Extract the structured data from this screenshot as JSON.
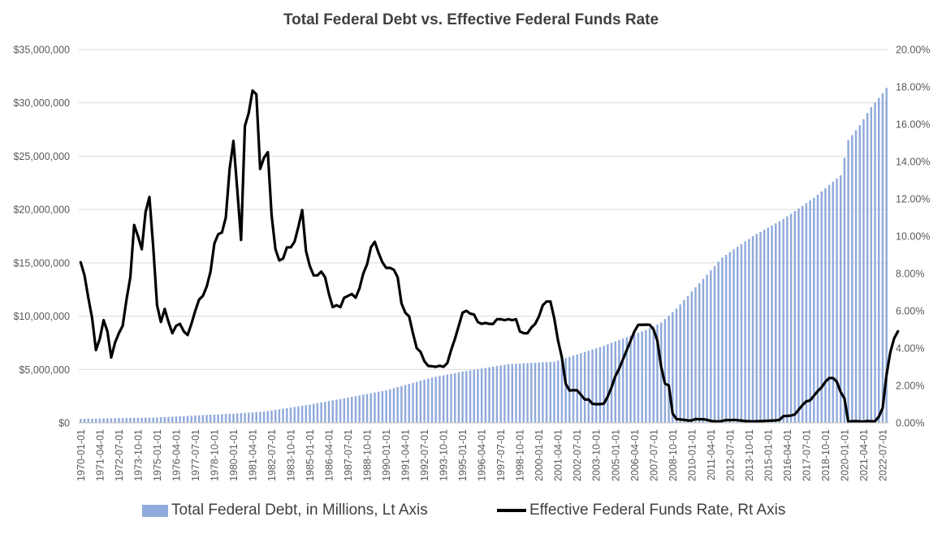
{
  "colors": {
    "bars": "#8faadc",
    "line": "#000000",
    "grid": "#d9d9d9",
    "text": "#595959"
  },
  "chart_data": {
    "type": "bar",
    "combo": "bar + line, dual axis",
    "title": "Total Federal Debt vs. Effective Federal Funds Rate",
    "grid": true,
    "legend_position": "bottom",
    "left_axis": {
      "range": [
        0,
        35000000
      ],
      "tick_labels": [
        "$0",
        "$5,000,000",
        "$10,000,000",
        "$15,000,000",
        "$20,000,000",
        "$25,000,000",
        "$30,000,000",
        "$35,000,000"
      ]
    },
    "right_axis": {
      "range": [
        0,
        20
      ],
      "tick_labels": [
        "0.00%",
        "2.00%",
        "4.00%",
        "6.00%",
        "8.00%",
        "10.00%",
        "12.00%",
        "14.00%",
        "16.00%",
        "18.00%",
        "20.00%"
      ]
    },
    "x_tick_labels": [
      "1970-01-01",
      "1971-04-01",
      "1972-07-01",
      "1973-10-01",
      "1975-01-01",
      "1976-04-01",
      "1977-07-01",
      "1978-10-01",
      "1980-01-01",
      "1981-04-01",
      "1982-07-01",
      "1983-10-01",
      "1985-01-01",
      "1986-04-01",
      "1987-07-01",
      "1988-10-01",
      "1990-01-01",
      "1991-04-01",
      "1992-07-01",
      "1993-10-01",
      "1995-01-01",
      "1996-04-01",
      "1997-07-01",
      "1998-10-01",
      "2000-01-01",
      "2001-04-01",
      "2002-07-01",
      "2003-10-01",
      "2005-01-01",
      "2006-04-01",
      "2007-07-01",
      "2008-10-01",
      "2010-01-01",
      "2011-04-01",
      "2012-07-01",
      "2013-10-01",
      "2015-01-01",
      "2016-04-01",
      "2017-07-01",
      "2018-10-01",
      "2020-01-01",
      "2021-04-01",
      "2022-07-01"
    ],
    "x_start": "1970-01-01",
    "x_end": "2023-01-01",
    "frequency": "quarterly",
    "series": [
      {
        "name": "Total Federal Debt, in Millions, Lt Axis",
        "type": "bar",
        "axis": "left",
        "anchors": [
          [
            "1970-01-01",
            371000
          ],
          [
            "1975-01-01",
            509000
          ],
          [
            "1980-01-01",
            863000
          ],
          [
            "1982-01-01",
            1050000
          ],
          [
            "1985-01-01",
            1710000
          ],
          [
            "1988-01-01",
            2500000
          ],
          [
            "1990-01-01",
            3050000
          ],
          [
            "1993-01-01",
            4240000
          ],
          [
            "1995-01-01",
            4800000
          ],
          [
            "1998-01-01",
            5500000
          ],
          [
            "2001-01-01",
            5730000
          ],
          [
            "2004-01-01",
            7100000
          ],
          [
            "2007-01-01",
            8700000
          ],
          [
            "2008-01-01",
            9400000
          ],
          [
            "2009-01-01",
            10700000
          ],
          [
            "2010-01-01",
            12300000
          ],
          [
            "2012-01-01",
            15500000
          ],
          [
            "2014-01-01",
            17500000
          ],
          [
            "2016-01-01",
            19100000
          ],
          [
            "2018-01-01",
            21100000
          ],
          [
            "2019-10-01",
            23200000
          ],
          [
            "2020-04-01",
            26500000
          ],
          [
            "2021-01-01",
            27900000
          ],
          [
            "2021-10-01",
            29600000
          ],
          [
            "2022-07-01",
            30900000
          ],
          [
            "2022-10-01",
            31400000
          ]
        ]
      },
      {
        "name": "Effective Federal Funds Rate, Rt Axis",
        "type": "line",
        "axis": "right",
        "points": [
          [
            "1970-01-01",
            8.6
          ],
          [
            "1970-04-01",
            7.9
          ],
          [
            "1970-07-01",
            6.7
          ],
          [
            "1970-10-01",
            5.6
          ],
          [
            "1971-01-01",
            3.9
          ],
          [
            "1971-04-01",
            4.5
          ],
          [
            "1971-07-01",
            5.5
          ],
          [
            "1971-10-01",
            4.9
          ],
          [
            "1972-01-01",
            3.5
          ],
          [
            "1972-04-01",
            4.3
          ],
          [
            "1972-07-01",
            4.8
          ],
          [
            "1972-10-01",
            5.2
          ],
          [
            "1973-01-01",
            6.6
          ],
          [
            "1973-04-01",
            7.8
          ],
          [
            "1973-07-01",
            10.6
          ],
          [
            "1973-10-01",
            10.0
          ],
          [
            "1974-01-01",
            9.3
          ],
          [
            "1974-04-01",
            11.3
          ],
          [
            "1974-07-01",
            12.1
          ],
          [
            "1974-10-01",
            9.4
          ],
          [
            "1975-01-01",
            6.3
          ],
          [
            "1975-04-01",
            5.4
          ],
          [
            "1975-07-01",
            6.1
          ],
          [
            "1975-10-01",
            5.4
          ],
          [
            "1976-01-01",
            4.8
          ],
          [
            "1976-04-01",
            5.2
          ],
          [
            "1976-07-01",
            5.3
          ],
          [
            "1976-10-01",
            4.9
          ],
          [
            "1977-01-01",
            4.7
          ],
          [
            "1977-04-01",
            5.3
          ],
          [
            "1977-07-01",
            6.0
          ],
          [
            "1977-10-01",
            6.6
          ],
          [
            "1978-01-01",
            6.8
          ],
          [
            "1978-04-01",
            7.3
          ],
          [
            "1978-07-01",
            8.1
          ],
          [
            "1978-10-01",
            9.6
          ],
          [
            "1979-01-01",
            10.1
          ],
          [
            "1979-04-01",
            10.2
          ],
          [
            "1979-07-01",
            11.0
          ],
          [
            "1979-10-01",
            13.6
          ],
          [
            "1980-01-01",
            15.1
          ],
          [
            "1980-04-01",
            12.5
          ],
          [
            "1980-07-01",
            9.8
          ],
          [
            "1980-10-01",
            15.9
          ],
          [
            "1981-01-01",
            16.6
          ],
          [
            "1981-04-01",
            17.8
          ],
          [
            "1981-07-01",
            17.6
          ],
          [
            "1981-10-01",
            13.6
          ],
          [
            "1982-01-01",
            14.2
          ],
          [
            "1982-04-01",
            14.5
          ],
          [
            "1982-07-01",
            11.1
          ],
          [
            "1982-10-01",
            9.3
          ],
          [
            "1983-01-01",
            8.7
          ],
          [
            "1983-04-01",
            8.8
          ],
          [
            "1983-07-01",
            9.4
          ],
          [
            "1983-10-01",
            9.4
          ],
          [
            "1984-01-01",
            9.7
          ],
          [
            "1984-04-01",
            10.5
          ],
          [
            "1984-07-01",
            11.4
          ],
          [
            "1984-10-01",
            9.2
          ],
          [
            "1985-01-01",
            8.4
          ],
          [
            "1985-04-01",
            7.9
          ],
          [
            "1985-07-01",
            7.9
          ],
          [
            "1985-10-01",
            8.1
          ],
          [
            "1986-01-01",
            7.8
          ],
          [
            "1986-04-01",
            6.9
          ],
          [
            "1986-07-01",
            6.2
          ],
          [
            "1986-10-01",
            6.3
          ],
          [
            "1987-01-01",
            6.2
          ],
          [
            "1987-04-01",
            6.7
          ],
          [
            "1987-07-01",
            6.8
          ],
          [
            "1987-10-01",
            6.9
          ],
          [
            "1988-01-01",
            6.7
          ],
          [
            "1988-04-01",
            7.2
          ],
          [
            "1988-07-01",
            8.0
          ],
          [
            "1988-10-01",
            8.5
          ],
          [
            "1989-01-01",
            9.4
          ],
          [
            "1989-04-01",
            9.7
          ],
          [
            "1989-07-01",
            9.1
          ],
          [
            "1989-10-01",
            8.6
          ],
          [
            "1990-01-01",
            8.3
          ],
          [
            "1990-04-01",
            8.3
          ],
          [
            "1990-07-01",
            8.2
          ],
          [
            "1990-10-01",
            7.8
          ],
          [
            "1991-01-01",
            6.4
          ],
          [
            "1991-04-01",
            5.9
          ],
          [
            "1991-07-01",
            5.7
          ],
          [
            "1991-10-01",
            4.8
          ],
          [
            "1992-01-01",
            4.0
          ],
          [
            "1992-04-01",
            3.8
          ],
          [
            "1992-07-01",
            3.3
          ],
          [
            "1992-10-01",
            3.05
          ],
          [
            "1993-01-01",
            3.03
          ],
          [
            "1993-04-01",
            3.0
          ],
          [
            "1993-07-01",
            3.06
          ],
          [
            "1993-10-01",
            3.0
          ],
          [
            "1994-01-01",
            3.2
          ],
          [
            "1994-04-01",
            3.9
          ],
          [
            "1994-07-01",
            4.5
          ],
          [
            "1994-10-01",
            5.2
          ],
          [
            "1995-01-01",
            5.9
          ],
          [
            "1995-04-01",
            6.0
          ],
          [
            "1995-07-01",
            5.85
          ],
          [
            "1995-10-01",
            5.8
          ],
          [
            "1996-01-01",
            5.4
          ],
          [
            "1996-04-01",
            5.3
          ],
          [
            "1996-07-01",
            5.35
          ],
          [
            "1996-10-01",
            5.3
          ],
          [
            "1997-01-01",
            5.3
          ],
          [
            "1997-04-01",
            5.55
          ],
          [
            "1997-07-01",
            5.55
          ],
          [
            "1997-10-01",
            5.5
          ],
          [
            "1998-01-01",
            5.55
          ],
          [
            "1998-04-01",
            5.5
          ],
          [
            "1998-07-01",
            5.55
          ],
          [
            "1998-10-01",
            4.9
          ],
          [
            "1999-01-01",
            4.8
          ],
          [
            "1999-04-01",
            4.8
          ],
          [
            "1999-07-01",
            5.1
          ],
          [
            "1999-10-01",
            5.3
          ],
          [
            "2000-01-01",
            5.7
          ],
          [
            "2000-04-01",
            6.3
          ],
          [
            "2000-07-01",
            6.5
          ],
          [
            "2000-10-01",
            6.5
          ],
          [
            "2001-01-01",
            5.6
          ],
          [
            "2001-04-01",
            4.4
          ],
          [
            "2001-07-01",
            3.5
          ],
          [
            "2001-10-01",
            2.1
          ],
          [
            "2002-01-01",
            1.73
          ],
          [
            "2002-04-01",
            1.75
          ],
          [
            "2002-07-01",
            1.74
          ],
          [
            "2002-10-01",
            1.5
          ],
          [
            "2003-01-01",
            1.25
          ],
          [
            "2003-04-01",
            1.25
          ],
          [
            "2003-07-01",
            1.02
          ],
          [
            "2003-10-01",
            1.0
          ],
          [
            "2004-01-01",
            1.0
          ],
          [
            "2004-04-01",
            1.03
          ],
          [
            "2004-07-01",
            1.4
          ],
          [
            "2004-10-01",
            1.9
          ],
          [
            "2005-01-01",
            2.5
          ],
          [
            "2005-04-01",
            2.9
          ],
          [
            "2005-07-01",
            3.4
          ],
          [
            "2005-10-01",
            3.9
          ],
          [
            "2006-01-01",
            4.4
          ],
          [
            "2006-04-01",
            4.9
          ],
          [
            "2006-07-01",
            5.25
          ],
          [
            "2006-10-01",
            5.25
          ],
          [
            "2007-01-01",
            5.26
          ],
          [
            "2007-04-01",
            5.25
          ],
          [
            "2007-07-01",
            5.0
          ],
          [
            "2007-10-01",
            4.4
          ],
          [
            "2008-01-01",
            3.0
          ],
          [
            "2008-04-01",
            2.1
          ],
          [
            "2008-07-01",
            2.0
          ],
          [
            "2008-10-01",
            0.5
          ],
          [
            "2009-01-01",
            0.2
          ],
          [
            "2009-04-01",
            0.18
          ],
          [
            "2009-07-01",
            0.16
          ],
          [
            "2009-10-01",
            0.12
          ],
          [
            "2010-01-01",
            0.13
          ],
          [
            "2010-04-01",
            0.2
          ],
          [
            "2010-07-01",
            0.19
          ],
          [
            "2010-10-01",
            0.19
          ],
          [
            "2011-01-01",
            0.16
          ],
          [
            "2011-04-01",
            0.1
          ],
          [
            "2011-07-01",
            0.08
          ],
          [
            "2011-10-01",
            0.07
          ],
          [
            "2012-01-01",
            0.1
          ],
          [
            "2012-04-01",
            0.15
          ],
          [
            "2012-07-01",
            0.14
          ],
          [
            "2012-10-01",
            0.16
          ],
          [
            "2013-01-01",
            0.14
          ],
          [
            "2013-04-01",
            0.12
          ],
          [
            "2013-07-01",
            0.09
          ],
          [
            "2013-10-01",
            0.09
          ],
          [
            "2014-01-01",
            0.07
          ],
          [
            "2014-04-01",
            0.09
          ],
          [
            "2014-07-01",
            0.09
          ],
          [
            "2014-10-01",
            0.1
          ],
          [
            "2015-01-01",
            0.11
          ],
          [
            "2015-04-01",
            0.12
          ],
          [
            "2015-07-01",
            0.13
          ],
          [
            "2015-10-01",
            0.16
          ],
          [
            "2016-01-01",
            0.36
          ],
          [
            "2016-04-01",
            0.37
          ],
          [
            "2016-07-01",
            0.39
          ],
          [
            "2016-10-01",
            0.45
          ],
          [
            "2017-01-01",
            0.7
          ],
          [
            "2017-04-01",
            0.95
          ],
          [
            "2017-07-01",
            1.15
          ],
          [
            "2017-10-01",
            1.2
          ],
          [
            "2018-01-01",
            1.45
          ],
          [
            "2018-04-01",
            1.7
          ],
          [
            "2018-07-01",
            1.9
          ],
          [
            "2018-10-01",
            2.2
          ],
          [
            "2019-01-01",
            2.4
          ],
          [
            "2019-04-01",
            2.4
          ],
          [
            "2019-07-01",
            2.2
          ],
          [
            "2019-10-01",
            1.65
          ],
          [
            "2020-01-01",
            1.3
          ],
          [
            "2020-04-01",
            0.05
          ],
          [
            "2020-07-01",
            0.09
          ],
          [
            "2020-10-01",
            0.09
          ],
          [
            "2021-01-01",
            0.08
          ],
          [
            "2021-04-01",
            0.06
          ],
          [
            "2021-07-01",
            0.1
          ],
          [
            "2021-10-01",
            0.08
          ],
          [
            "2022-01-01",
            0.08
          ],
          [
            "2022-04-01",
            0.33
          ],
          [
            "2022-07-01",
            0.8
          ],
          [
            "2022-10-01",
            2.56
          ],
          [
            "2023-01-01",
            3.78
          ],
          [
            "2023-04-01",
            4.52
          ],
          [
            "2023-07-01",
            4.9
          ]
        ]
      }
    ]
  }
}
